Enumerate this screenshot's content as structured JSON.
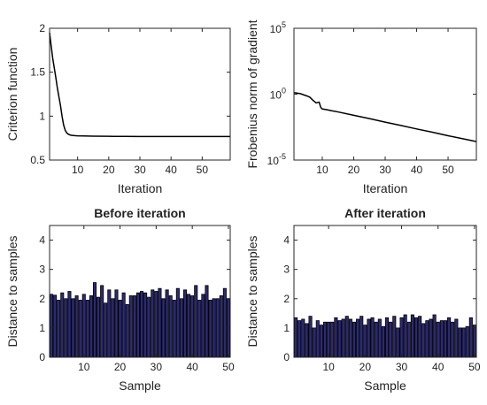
{
  "chart_data": [
    {
      "type": "line",
      "title": "",
      "xlabel": "Iteration",
      "ylabel": "Criterion function",
      "xlim": [
        1,
        59
      ],
      "ylim": [
        0.5,
        2
      ],
      "xticks": [
        "10",
        "20",
        "30",
        "40",
        "50"
      ],
      "xtick_values": [
        10,
        20,
        30,
        40,
        50
      ],
      "yticks": [
        "0.5",
        "1",
        "1.5",
        "2"
      ],
      "ytick_values": [
        0.5,
        1,
        1.5,
        2
      ],
      "grid": false,
      "series": [
        {
          "color": "#000000",
          "x": [
            1,
            1.5,
            2,
            2.5,
            3,
            3.5,
            4,
            4.5,
            5,
            5.5,
            6,
            6.5,
            7,
            7.5,
            8,
            9,
            10,
            12,
            15,
            20,
            25,
            30,
            40,
            50,
            59
          ],
          "y": [
            1.95,
            1.8,
            1.66,
            1.55,
            1.44,
            1.32,
            1.22,
            1.12,
            1.0,
            0.9,
            0.84,
            0.81,
            0.795,
            0.787,
            0.782,
            0.778,
            0.776,
            0.774,
            0.772,
            0.77,
            0.769,
            0.768,
            0.768,
            0.768,
            0.768
          ]
        }
      ]
    },
    {
      "type": "line",
      "title": "",
      "xlabel": "Iteration",
      "ylabel": "Frobenius norm of gradient",
      "xlim": [
        1,
        59
      ],
      "ylim": [
        1e-05,
        100000
      ],
      "yscale": "log",
      "xticks": [
        "10",
        "20",
        "30",
        "40",
        "50"
      ],
      "xtick_values": [
        10,
        20,
        30,
        40,
        50
      ],
      "yticks": [
        {
          "base": "10",
          "exp": "-5"
        },
        {
          "base": "10",
          "exp": "0"
        },
        {
          "base": "10",
          "exp": "5"
        }
      ],
      "ytick_values": [
        1e-05,
        1,
        100000
      ],
      "grid": false,
      "series": [
        {
          "color": "#000000",
          "x": [
            1,
            3,
            5,
            6,
            7,
            8,
            9,
            9.5,
            10,
            11,
            13,
            15,
            20,
            25,
            30,
            35,
            40,
            45,
            50,
            55,
            59
          ],
          "y": [
            1.3,
            1.1,
            0.75,
            0.6,
            0.35,
            0.22,
            0.25,
            0.1,
            0.075,
            0.07,
            0.055,
            0.045,
            0.025,
            0.014,
            0.0075,
            0.0042,
            0.0023,
            0.0013,
            0.0007,
            0.0004,
            0.00025
          ]
        }
      ]
    },
    {
      "type": "bar",
      "title": "Before iteration",
      "xlabel": "Sample",
      "ylabel": "Distance to samples",
      "xlim": [
        0.5,
        50.5
      ],
      "ylim": [
        0,
        4.5
      ],
      "xticks": [
        "10",
        "20",
        "30",
        "40",
        "50"
      ],
      "xtick_values": [
        10,
        20,
        30,
        40,
        50
      ],
      "yticks": [
        "0",
        "1",
        "2",
        "3",
        "4"
      ],
      "ytick_values": [
        0,
        1,
        2,
        3,
        4
      ],
      "grid": false,
      "bar_color": "#2b2a73",
      "x": [
        1,
        2,
        3,
        4,
        5,
        6,
        7,
        8,
        9,
        10,
        11,
        12,
        13,
        14,
        15,
        16,
        17,
        18,
        19,
        20,
        21,
        22,
        23,
        24,
        25,
        26,
        27,
        28,
        29,
        30,
        31,
        32,
        33,
        34,
        35,
        36,
        37,
        38,
        39,
        40,
        41,
        42,
        43,
        44,
        45,
        46,
        47,
        48,
        49,
        50
      ],
      "values": [
        2.15,
        2.12,
        1.95,
        2.2,
        2.0,
        2.25,
        2.0,
        2.1,
        1.95,
        2.15,
        1.95,
        2.1,
        2.55,
        2.05,
        2.45,
        1.85,
        2.3,
        2.0,
        2.3,
        1.95,
        2.2,
        1.8,
        2.1,
        2.1,
        2.2,
        2.25,
        2.2,
        2.05,
        2.3,
        2.25,
        2.35,
        2.0,
        2.3,
        2.1,
        1.95,
        2.35,
        2.0,
        2.3,
        2.15,
        2.1,
        2.45,
        1.95,
        2.15,
        2.45,
        1.95,
        2.0,
        2.0,
        2.1,
        2.35,
        2.0
      ]
    },
    {
      "type": "bar",
      "title": "After iteration",
      "xlabel": "Sample",
      "ylabel": "Distance to samples",
      "xlim": [
        0.5,
        50.5
      ],
      "ylim": [
        0,
        4.5
      ],
      "xticks": [
        "10",
        "20",
        "30",
        "40",
        "50"
      ],
      "xtick_values": [
        10,
        20,
        30,
        40,
        50
      ],
      "yticks": [
        "0",
        "1",
        "2",
        "3",
        "4"
      ],
      "ytick_values": [
        0,
        1,
        2,
        3,
        4
      ],
      "grid": false,
      "bar_color": "#2b2a73",
      "x": [
        1,
        2,
        3,
        4,
        5,
        6,
        7,
        8,
        9,
        10,
        11,
        12,
        13,
        14,
        15,
        16,
        17,
        18,
        19,
        20,
        21,
        22,
        23,
        24,
        25,
        26,
        27,
        28,
        29,
        30,
        31,
        32,
        33,
        34,
        35,
        36,
        37,
        38,
        39,
        40,
        41,
        42,
        43,
        44,
        45,
        46,
        47,
        48,
        49,
        50
      ],
      "values": [
        1.35,
        1.25,
        1.3,
        1.15,
        1.4,
        1.0,
        1.25,
        1.1,
        1.2,
        1.2,
        1.2,
        1.35,
        1.25,
        1.3,
        1.4,
        1.3,
        1.2,
        1.3,
        1.4,
        1.1,
        1.3,
        1.35,
        1.2,
        1.3,
        1.05,
        1.35,
        1.2,
        1.4,
        1.0,
        1.35,
        1.45,
        1.2,
        1.45,
        1.35,
        1.4,
        1.15,
        1.25,
        1.3,
        1.45,
        1.2,
        1.25,
        1.25,
        1.35,
        1.2,
        1.3,
        1.0,
        1.0,
        1.05,
        1.35,
        1.1
      ]
    }
  ]
}
